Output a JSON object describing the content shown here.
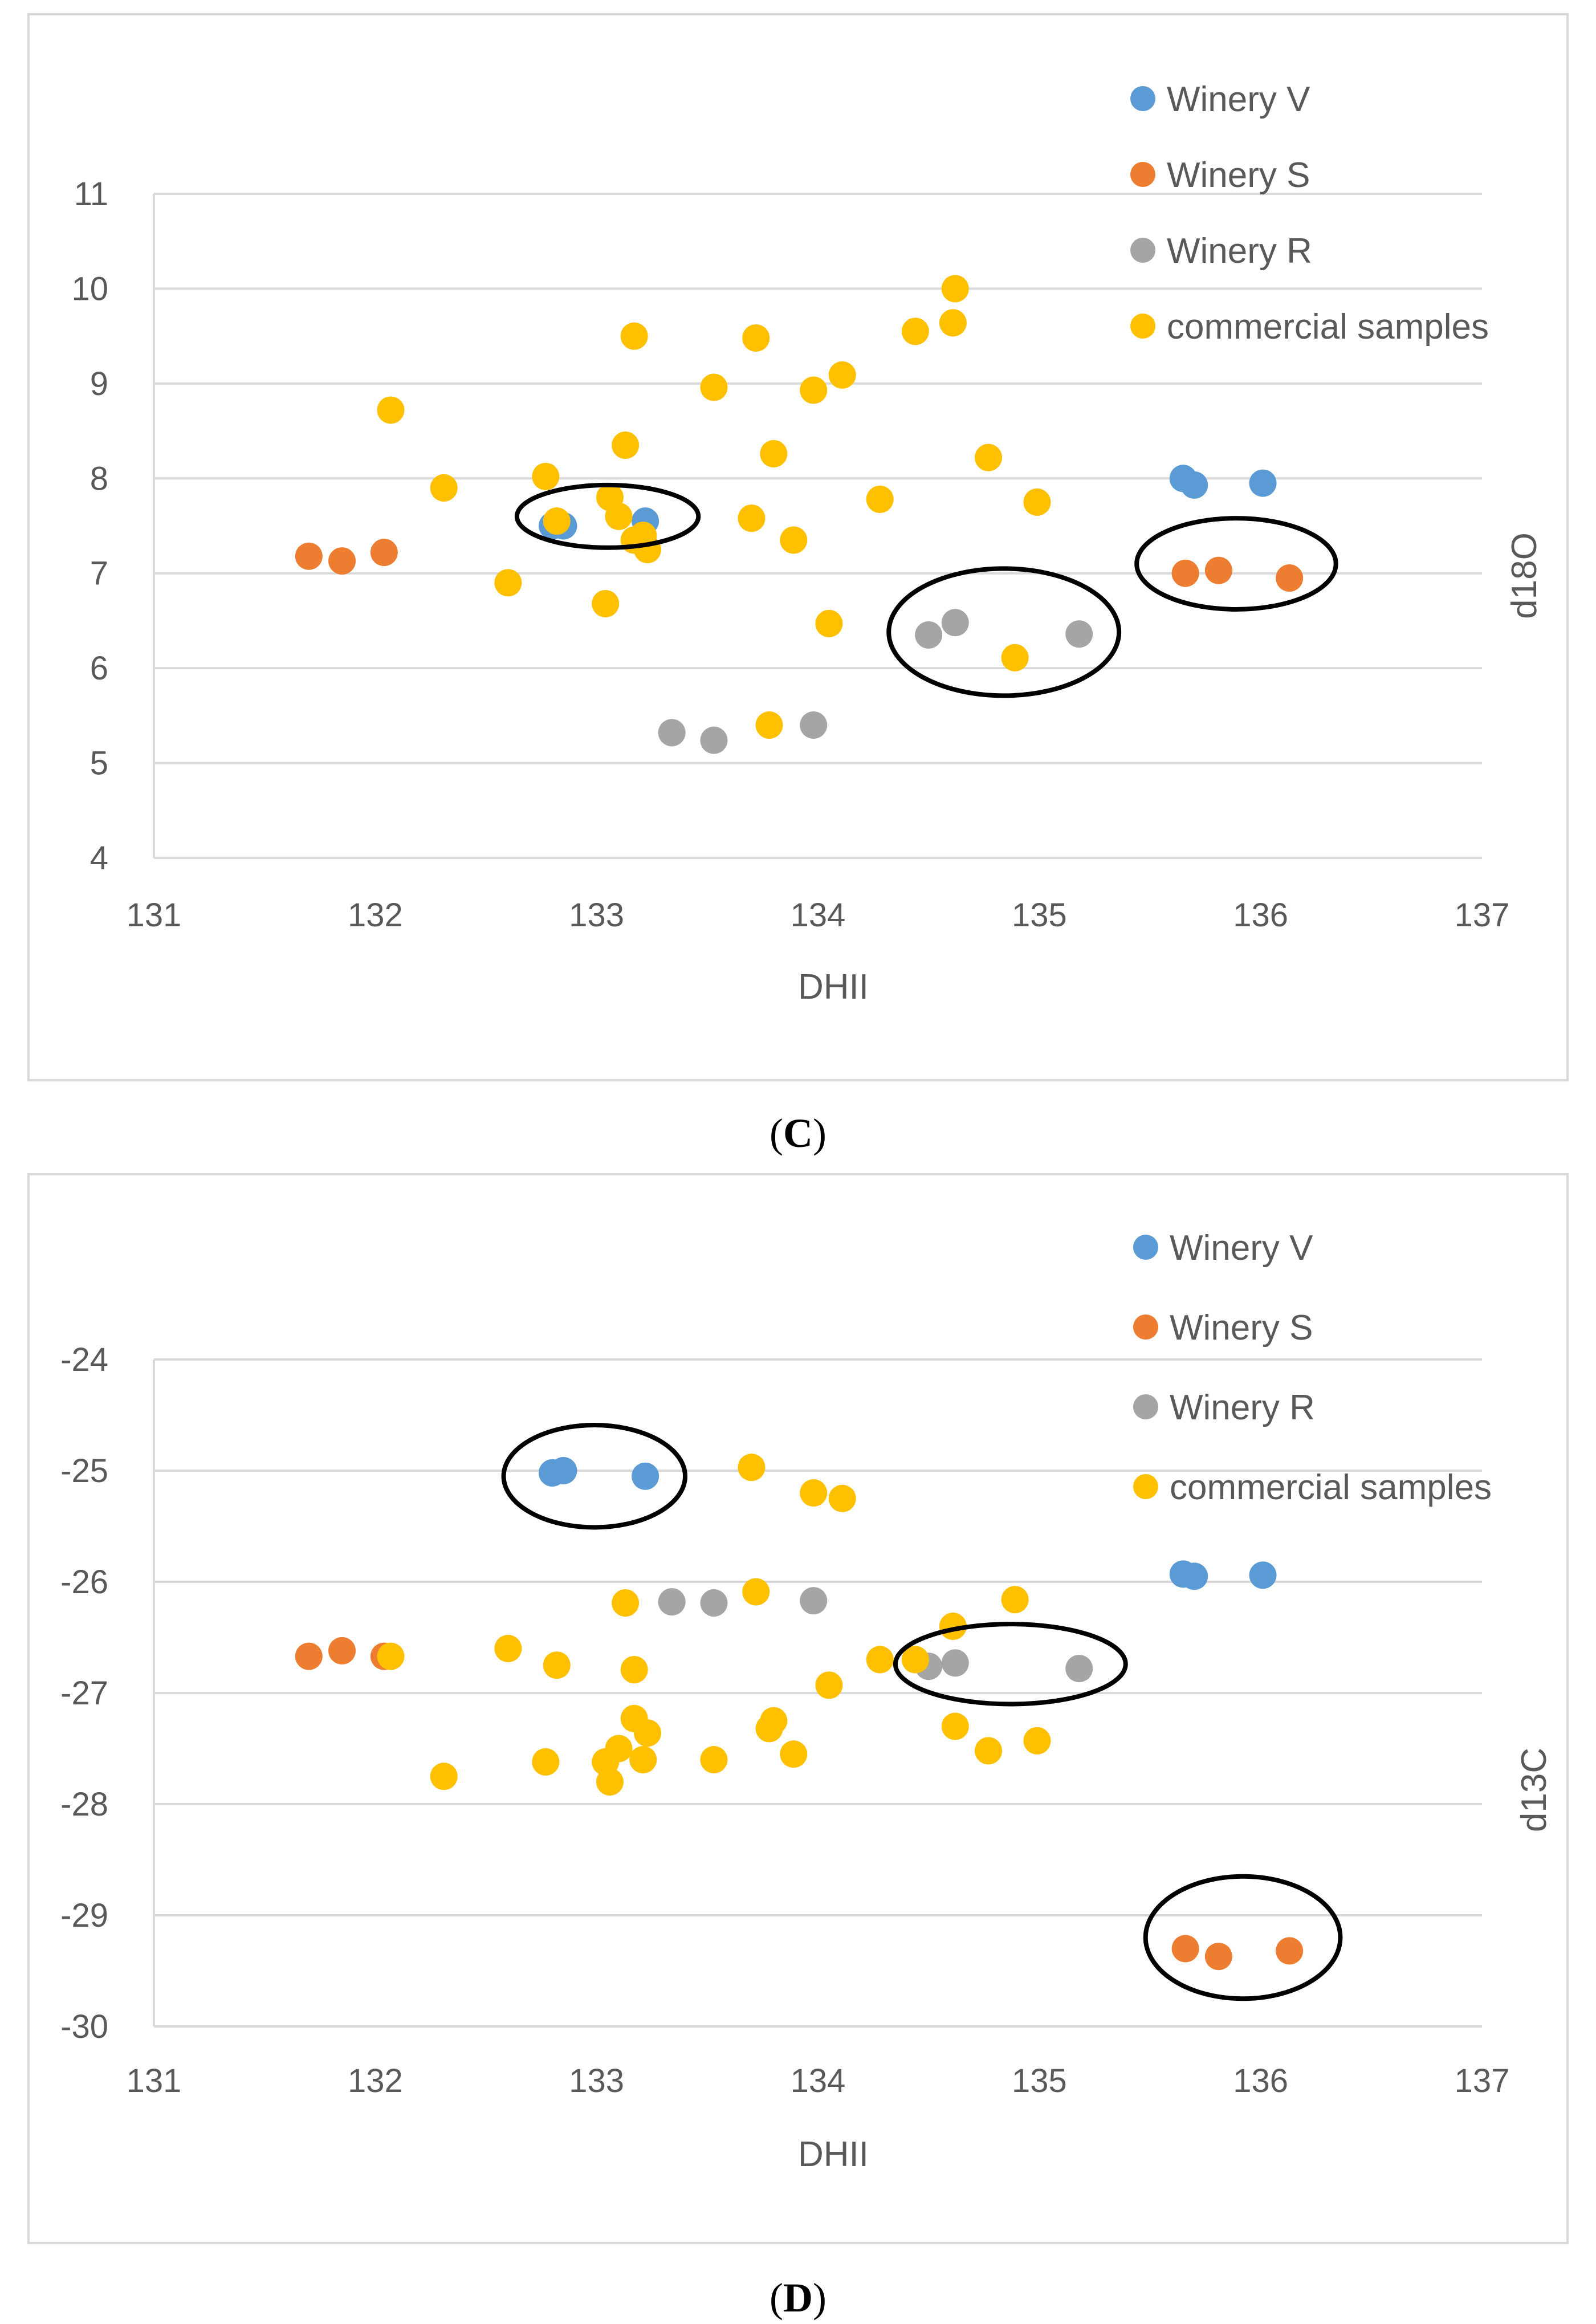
{
  "colors": {
    "Winery V": "#5b9bd5",
    "Winery S": "#ed7d31",
    "Winery R": "#a5a5a5",
    "commercial samples": "#ffc000",
    "frame": "#d9d9d9",
    "grid": "#d9d9d9",
    "text": "#595959",
    "ellipse": "#000000"
  },
  "chart_data": [
    {
      "panel": "C",
      "caption_letter": "C",
      "type": "scatter",
      "xlabel": "DHII",
      "ylabel": "d18O",
      "xlim": [
        131,
        137
      ],
      "ylim": [
        4,
        11
      ],
      "xticks": [
        "131",
        "132",
        "133",
        "134",
        "135",
        "136",
        "137"
      ],
      "yticks": [
        "4",
        "5",
        "6",
        "7",
        "8",
        "9",
        "10",
        "11"
      ],
      "grid": "horizontal",
      "legend": "top-right",
      "series": [
        {
          "name": "Winery V",
          "points": [
            [
              132.8,
              7.5
            ],
            [
              132.85,
              7.5
            ],
            [
              133.22,
              7.55
            ],
            [
              135.65,
              8.0
            ],
            [
              135.7,
              7.93
            ],
            [
              136.01,
              7.95
            ]
          ]
        },
        {
          "name": "Winery S",
          "points": [
            [
              131.7,
              7.18
            ],
            [
              131.85,
              7.13
            ],
            [
              132.04,
              7.22
            ],
            [
              135.66,
              7.0
            ],
            [
              135.81,
              7.03
            ],
            [
              136.13,
              6.95
            ]
          ]
        },
        {
          "name": "Winery R",
          "points": [
            [
              133.34,
              5.32
            ],
            [
              133.53,
              5.24
            ],
            [
              133.98,
              5.4
            ],
            [
              134.5,
              6.35
            ],
            [
              134.62,
              6.48
            ],
            [
              135.18,
              6.36
            ]
          ]
        },
        {
          "name": "commercial samples",
          "points": [
            [
              132.07,
              8.72
            ],
            [
              132.31,
              7.9
            ],
            [
              132.6,
              6.9
            ],
            [
              132.77,
              8.02
            ],
            [
              132.82,
              7.55
            ],
            [
              133.04,
              6.68
            ],
            [
              133.06,
              7.8
            ],
            [
              133.1,
              7.6
            ],
            [
              133.13,
              8.35
            ],
            [
              133.17,
              9.5
            ],
            [
              133.17,
              7.35
            ],
            [
              133.21,
              7.4
            ],
            [
              133.23,
              7.25
            ],
            [
              133.53,
              8.96
            ],
            [
              133.7,
              7.58
            ],
            [
              133.72,
              9.48
            ],
            [
              133.78,
              5.4
            ],
            [
              133.8,
              8.26
            ],
            [
              133.89,
              7.35
            ],
            [
              133.98,
              8.93
            ],
            [
              134.05,
              6.47
            ],
            [
              134.11,
              9.09
            ],
            [
              134.28,
              7.78
            ],
            [
              134.44,
              9.55
            ],
            [
              134.61,
              9.64
            ],
            [
              134.62,
              10.0
            ],
            [
              134.77,
              8.22
            ],
            [
              134.89,
              6.11
            ],
            [
              134.99,
              7.75
            ]
          ]
        }
      ],
      "annotations": [
        {
          "shape": "ellipse",
          "center": [
            133.05,
            7.6
          ],
          "radius": [
            0.41,
            0.33
          ]
        },
        {
          "shape": "ellipse",
          "center": [
            134.84,
            6.38
          ],
          "radius": [
            0.52,
            0.67
          ]
        },
        {
          "shape": "ellipse",
          "center": [
            135.89,
            7.1
          ],
          "radius": [
            0.45,
            0.48
          ]
        }
      ]
    },
    {
      "panel": "D",
      "caption_letter": "D",
      "type": "scatter",
      "xlabel": "DHII",
      "ylabel": "d13C",
      "xlim": [
        131,
        137
      ],
      "ylim": [
        -30,
        -24
      ],
      "xticks": [
        "131",
        "132",
        "133",
        "134",
        "135",
        "136",
        "137"
      ],
      "yticks": [
        "-30",
        "-29",
        "-28",
        "-27",
        "-26",
        "-25",
        "-24"
      ],
      "grid": "horizontal",
      "legend": "top-right",
      "series": [
        {
          "name": "Winery V",
          "points": [
            [
              132.8,
              -25.02
            ],
            [
              132.85,
              -25.0
            ],
            [
              133.22,
              -25.05
            ],
            [
              135.65,
              -25.93
            ],
            [
              135.7,
              -25.95
            ],
            [
              136.01,
              -25.94
            ]
          ]
        },
        {
          "name": "Winery S",
          "points": [
            [
              131.7,
              -26.67
            ],
            [
              131.85,
              -26.62
            ],
            [
              132.04,
              -26.67
            ],
            [
              135.66,
              -29.3
            ],
            [
              135.81,
              -29.37
            ],
            [
              136.13,
              -29.32
            ]
          ]
        },
        {
          "name": "Winery R",
          "points": [
            [
              133.34,
              -26.18
            ],
            [
              133.53,
              -26.19
            ],
            [
              133.98,
              -26.17
            ],
            [
              134.5,
              -26.76
            ],
            [
              134.62,
              -26.73
            ],
            [
              135.18,
              -26.78
            ]
          ]
        },
        {
          "name": "commercial samples",
          "points": [
            [
              132.07,
              -26.67
            ],
            [
              132.31,
              -27.75
            ],
            [
              132.6,
              -26.6
            ],
            [
              132.77,
              -27.62
            ],
            [
              132.82,
              -26.75
            ],
            [
              133.04,
              -27.62
            ],
            [
              133.06,
              -27.8
            ],
            [
              133.1,
              -27.5
            ],
            [
              133.13,
              -26.19
            ],
            [
              133.17,
              -26.79
            ],
            [
              133.17,
              -27.23
            ],
            [
              133.21,
              -27.6
            ],
            [
              133.23,
              -27.36
            ],
            [
              133.53,
              -27.6
            ],
            [
              133.7,
              -24.97
            ],
            [
              133.72,
              -26.09
            ],
            [
              133.78,
              -27.32
            ],
            [
              133.8,
              -27.25
            ],
            [
              133.89,
              -27.55
            ],
            [
              133.98,
              -25.2
            ],
            [
              134.05,
              -26.93
            ],
            [
              134.11,
              -25.25
            ],
            [
              134.28,
              -26.7
            ],
            [
              134.44,
              -26.7
            ],
            [
              134.61,
              -26.4
            ],
            [
              134.62,
              -27.3
            ],
            [
              134.77,
              -27.52
            ],
            [
              134.89,
              -26.16
            ],
            [
              134.99,
              -27.43
            ]
          ]
        }
      ],
      "annotations": [
        {
          "shape": "ellipse",
          "center": [
            132.99,
            -25.05
          ],
          "radius": [
            0.41,
            0.46
          ]
        },
        {
          "shape": "ellipse",
          "center": [
            134.87,
            -26.74
          ],
          "radius": [
            0.52,
            0.36
          ]
        },
        {
          "shape": "ellipse",
          "center": [
            135.92,
            -29.2
          ],
          "radius": [
            0.44,
            0.55
          ]
        }
      ]
    }
  ]
}
